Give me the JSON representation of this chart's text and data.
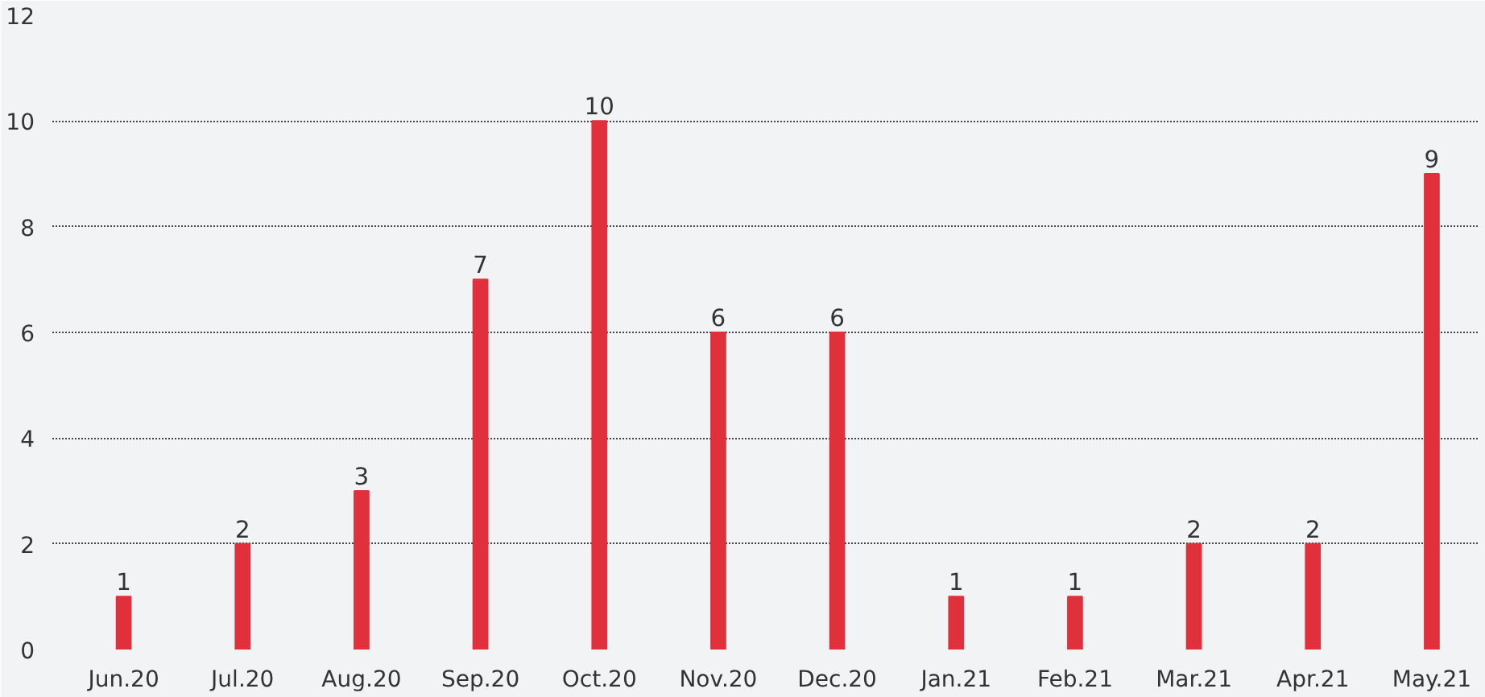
{
  "chart_data": {
    "type": "bar",
    "categories": [
      "Jun.20",
      "Jul.20",
      "Aug.20",
      "Sep.20",
      "Oct.20",
      "Nov.20",
      "Dec.20",
      "Jan.21",
      "Feb.21",
      "Mar.21",
      "Apr.21",
      "May.21"
    ],
    "values": [
      1,
      2,
      3,
      7,
      10,
      6,
      6,
      1,
      1,
      2,
      2,
      9
    ],
    "color": "#e0303c",
    "ylim": [
      0,
      12
    ],
    "yticks": [
      0,
      2,
      4,
      6,
      8,
      10,
      12
    ],
    "grid": "y",
    "data_labels": true
  }
}
